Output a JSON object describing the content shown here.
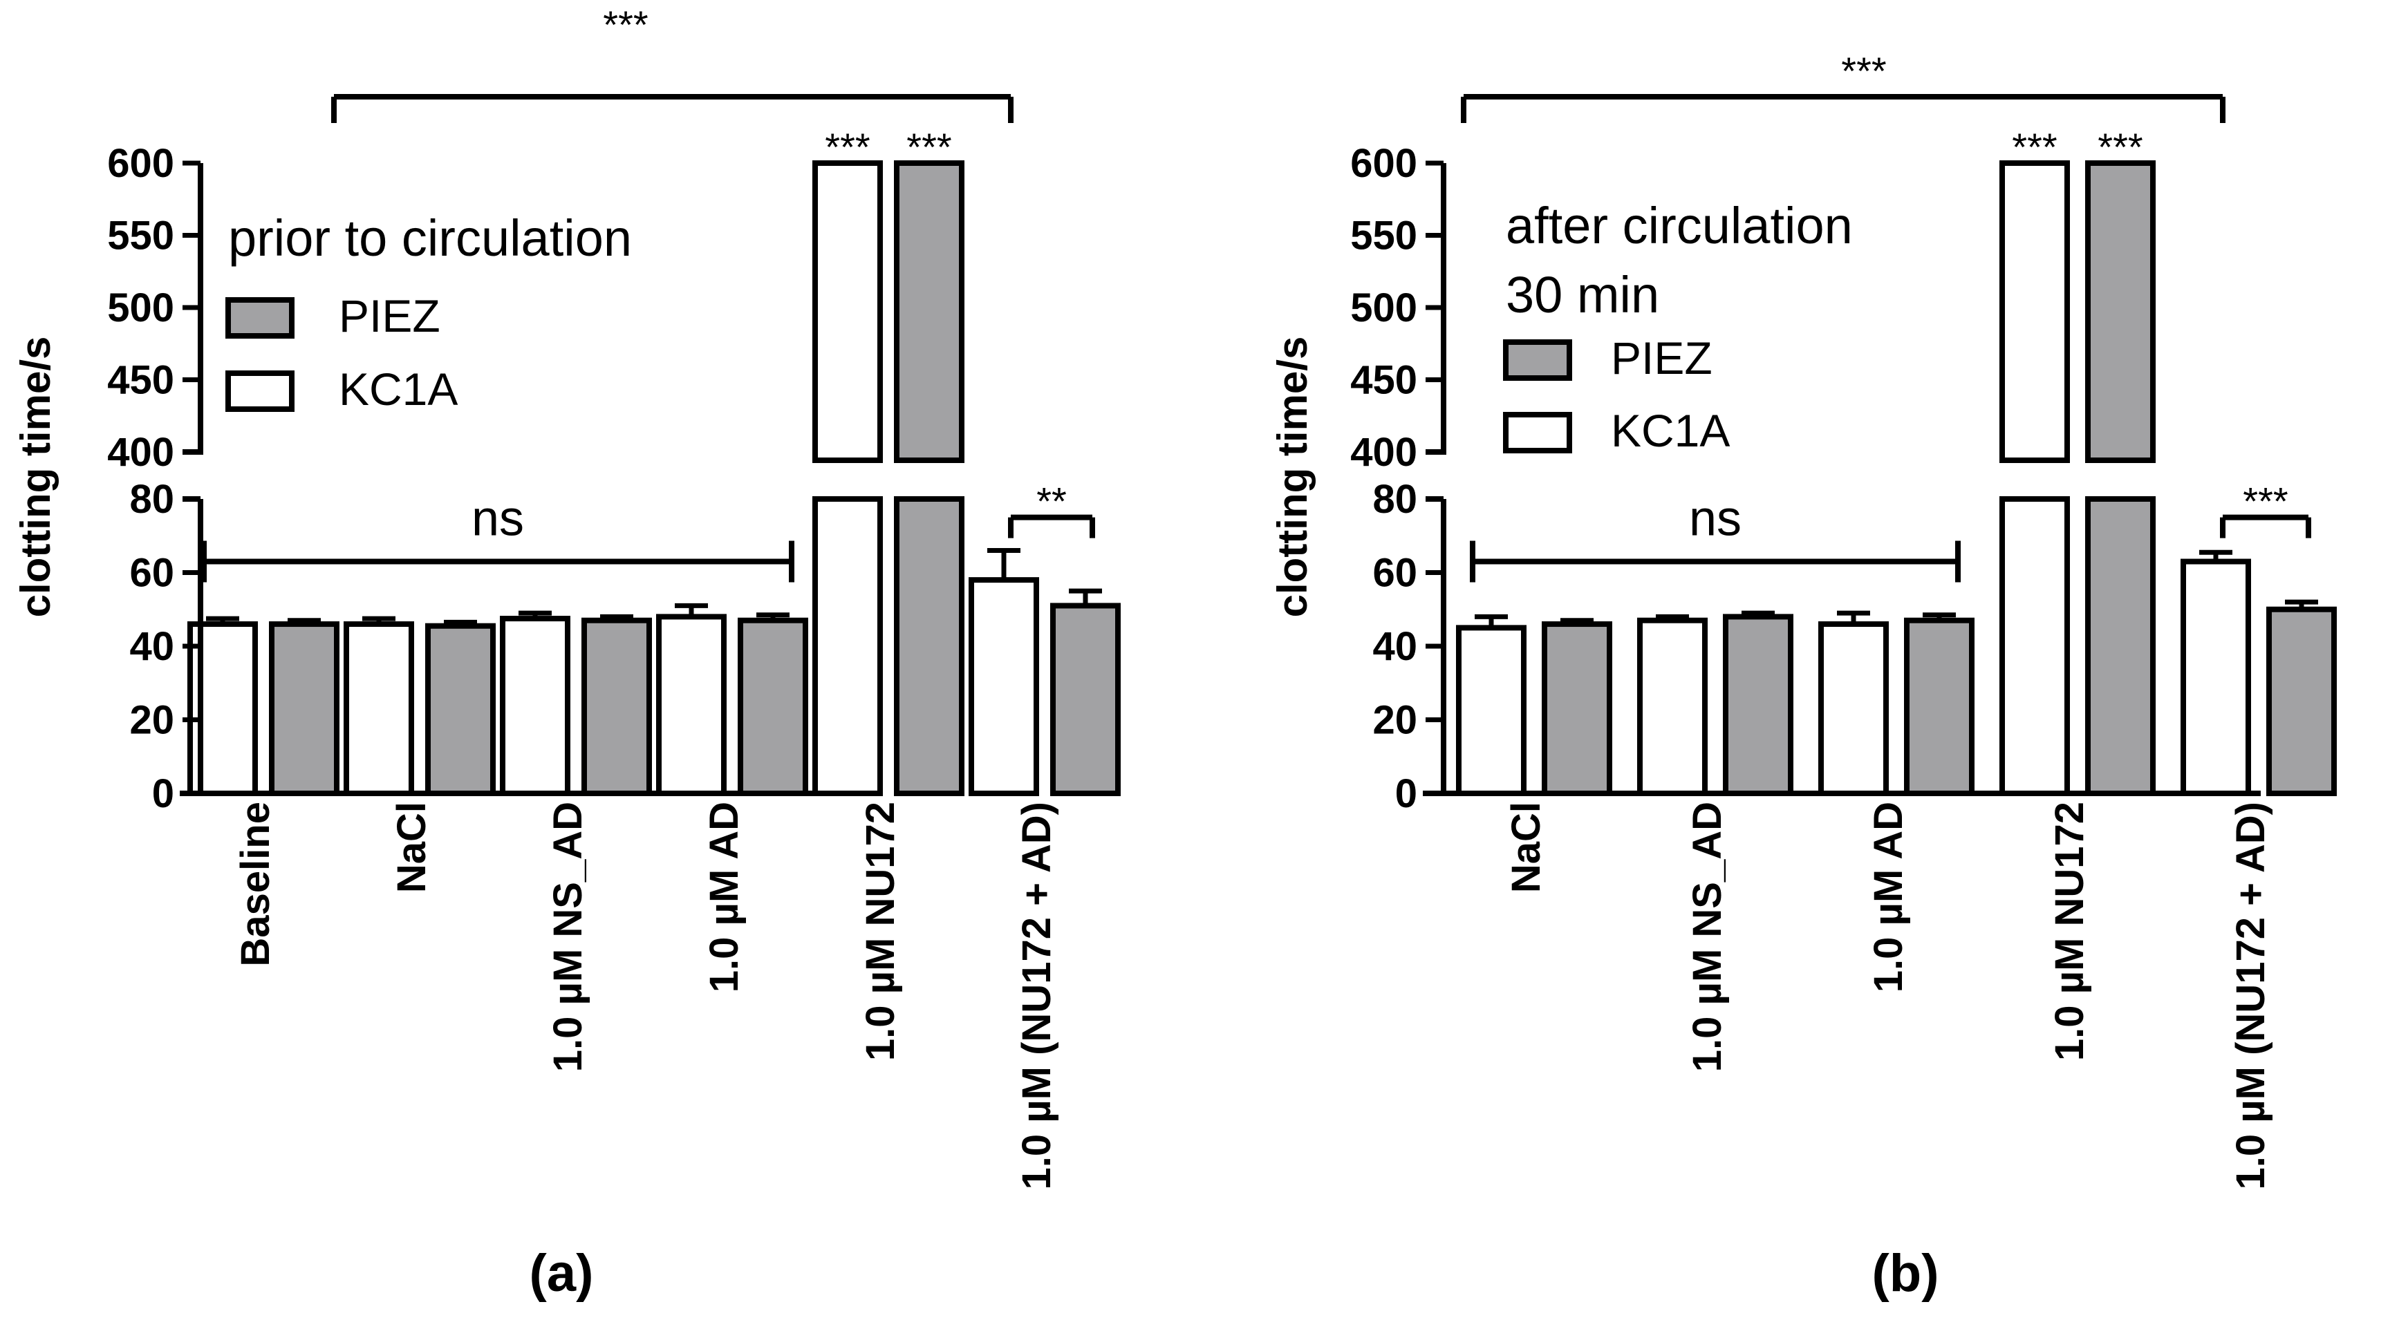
{
  "chart_data": [
    {
      "type": "bar",
      "panel_label": "(a)",
      "title": "prior to circulation",
      "ylabel": "clotting time/s",
      "axis_break": {
        "lower_range": [
          0,
          80
        ],
        "upper_range": [
          400,
          600
        ]
      },
      "ylim": [
        0,
        600
      ],
      "yticks_lower": [
        "0",
        "20",
        "40",
        "60",
        "80"
      ],
      "yticks_upper": [
        "400",
        "450",
        "500",
        "550",
        "600"
      ],
      "categories": [
        "Baseline",
        "NaCl",
        "1.0 µM NS_AD",
        "1.0 µM AD",
        "1.0 µM NU172",
        "1.0 µM (NU172 + AD)"
      ],
      "series": [
        {
          "name": "KC1A",
          "fill": "#ffffff",
          "values": [
            46,
            46,
            47.5,
            48,
            600,
            58
          ],
          "errors": [
            1.5,
            1.5,
            1.5,
            3,
            0,
            8
          ]
        },
        {
          "name": "PIEZ",
          "fill": "#a2a2a4",
          "values": [
            46,
            45.5,
            47,
            47,
            600,
            51
          ],
          "errors": [
            1,
            1,
            1,
            1.5,
            0,
            4
          ]
        }
      ],
      "legend": [
        {
          "label": "PIEZ",
          "fill": "#a2a2a4"
        },
        {
          "label": "KC1A",
          "fill": "#ffffff"
        }
      ],
      "bar_stars": [
        "***",
        "***"
      ],
      "annotations": [
        {
          "type": "bracket",
          "from_group": 0,
          "to_group": 3,
          "label": "ns",
          "y": 63
        },
        {
          "type": "pair-bracket",
          "group": 5,
          "label": "**",
          "y": 75
        },
        {
          "type": "top-bracket",
          "from_group": 1,
          "to_group": 5,
          "label": "***"
        }
      ]
    },
    {
      "type": "bar",
      "panel_label": "(b)",
      "title": "after circulation",
      "subtitle": "30 min",
      "ylabel": "clotting time/s",
      "axis_break": {
        "lower_range": [
          0,
          80
        ],
        "upper_range": [
          400,
          600
        ]
      },
      "ylim": [
        0,
        600
      ],
      "yticks_lower": [
        "0",
        "20",
        "40",
        "60",
        "80"
      ],
      "yticks_upper": [
        "400",
        "450",
        "500",
        "550",
        "600"
      ],
      "categories": [
        "NaCl",
        "1.0 µM NS_AD",
        "1.0 µM AD",
        "1.0 µM NU172",
        "1.0 µM (NU172 + AD)"
      ],
      "series": [
        {
          "name": "KC1A",
          "fill": "#ffffff",
          "values": [
            45,
            47,
            46,
            600,
            63
          ],
          "errors": [
            3,
            1,
            3,
            0,
            2.5
          ]
        },
        {
          "name": "PIEZ",
          "fill": "#a2a2a4",
          "values": [
            46,
            48,
            47,
            600,
            50
          ],
          "errors": [
            1,
            1,
            1.5,
            0,
            2
          ]
        }
      ],
      "legend": [
        {
          "label": "PIEZ",
          "fill": "#a2a2a4"
        },
        {
          "label": "KC1A",
          "fill": "#ffffff"
        }
      ],
      "bar_stars": [
        "***",
        "***"
      ],
      "annotations": [
        {
          "type": "bracket",
          "from_group": 0,
          "to_group": 2,
          "label": "ns",
          "y": 63
        },
        {
          "type": "pair-bracket",
          "group": 4,
          "label": "***",
          "y": 75
        },
        {
          "type": "top-bracket",
          "from_group": 0,
          "to_group": 4,
          "label": "***"
        }
      ]
    }
  ]
}
